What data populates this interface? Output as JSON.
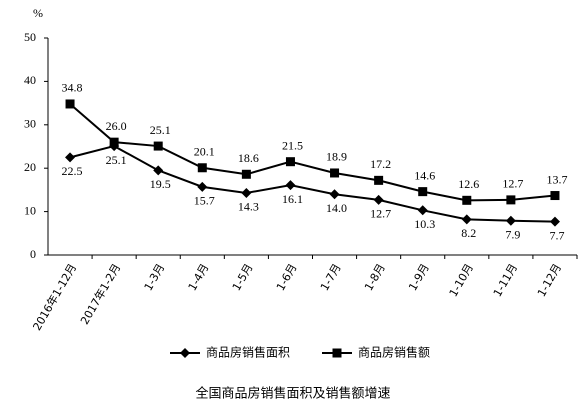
{
  "chart_data": {
    "type": "line",
    "title": "全国商品房销售面积及销售额增速",
    "y_label": "%",
    "categories": [
      "2016年1-12月",
      "2017年1-2月",
      "1-3月",
      "1-4月",
      "1-5月",
      "1-6月",
      "1-7月",
      "1-8月",
      "1-9月",
      "1-10月",
      "1-11月",
      "1-12月"
    ],
    "series": [
      {
        "name": "商品房销售面积",
        "color": "#000000",
        "marker": "diamond",
        "values": [
          22.5,
          25.1,
          19.5,
          15.7,
          14.3,
          16.1,
          14.0,
          12.7,
          10.3,
          8.2,
          7.9,
          7.7
        ],
        "value_labels": [
          "22.5",
          "25.1",
          "19.5",
          "15.7",
          "14.3",
          "16.1",
          "14.0",
          "12.7",
          "10.3",
          "8.2",
          "7.9",
          "7.7"
        ]
      },
      {
        "name": "商品房销售额",
        "color": "#000000",
        "marker": "square",
        "values": [
          34.8,
          26.0,
          25.1,
          20.1,
          18.6,
          21.5,
          18.9,
          17.2,
          14.6,
          12.6,
          12.7,
          13.7
        ],
        "value_labels": [
          "34.8",
          "26.0",
          "25.1",
          "20.1",
          "18.6",
          "21.5",
          "18.9",
          "17.2",
          "14.6",
          "12.6",
          "12.7",
          "13.7"
        ]
      }
    ],
    "ylim": [
      0,
      50
    ],
    "yticks": [
      0,
      10,
      20,
      30,
      40,
      50
    ],
    "grid": false
  }
}
